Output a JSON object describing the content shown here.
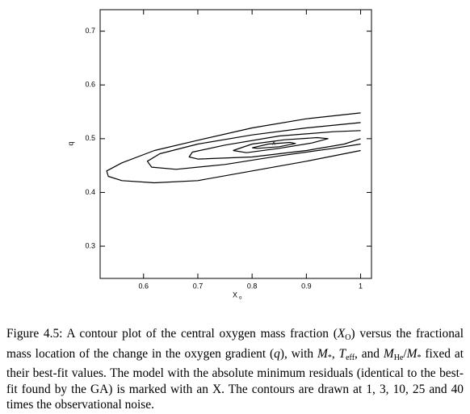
{
  "chart_data": {
    "type": "contour",
    "xlabel": "X",
    "xlabel_sub": "o",
    "ylabel": "q",
    "xlim": [
      0.52,
      1.02
    ],
    "ylim": [
      0.24,
      0.74
    ],
    "xticks": [
      0.6,
      0.7,
      0.8,
      0.9,
      1
    ],
    "yticks": [
      0.3,
      0.4,
      0.5,
      0.6,
      0.7
    ],
    "color": "#000000",
    "contours": [
      {
        "x": [
          1.0,
          0.9,
          0.8,
          0.7,
          0.62,
          0.56,
          0.532,
          0.535,
          0.56,
          0.62,
          0.7,
          0.8,
          0.9,
          1.0
        ],
        "y": [
          0.548,
          0.537,
          0.52,
          0.497,
          0.478,
          0.455,
          0.44,
          0.43,
          0.422,
          0.418,
          0.422,
          0.44,
          0.458,
          0.478
        ]
      },
      {
        "x": [
          1.0,
          0.9,
          0.8,
          0.7,
          0.63,
          0.607,
          0.615,
          0.66,
          0.75,
          0.85,
          0.95,
          1.0
        ],
        "y": [
          0.53,
          0.52,
          0.507,
          0.49,
          0.472,
          0.458,
          0.447,
          0.443,
          0.452,
          0.468,
          0.482,
          0.49
        ]
      },
      {
        "x": [
          1.0,
          0.95,
          0.85,
          0.75,
          0.69,
          0.684,
          0.7,
          0.8,
          0.9,
          0.97,
          1.0
        ],
        "y": [
          0.515,
          0.513,
          0.505,
          0.488,
          0.475,
          0.466,
          0.462,
          0.466,
          0.478,
          0.49,
          0.5
        ]
      },
      {
        "x": [
          0.765,
          0.8,
          0.86,
          0.92,
          0.94,
          0.91,
          0.85,
          0.79,
          0.765
        ],
        "y": [
          0.478,
          0.49,
          0.498,
          0.502,
          0.5,
          0.492,
          0.482,
          0.474,
          0.478
        ]
      },
      {
        "x": [
          0.8,
          0.83,
          0.87,
          0.88,
          0.85,
          0.81,
          0.8
        ],
        "y": [
          0.483,
          0.49,
          0.493,
          0.491,
          0.485,
          0.482,
          0.483
        ]
      }
    ],
    "marker": {
      "label": "x",
      "x": 0.84,
      "y": 0.49
    }
  },
  "caption": [
    {
      "text": "Figure 4.5: A contour plot of the central oxygen mass fraction (",
      "style": "normal"
    },
    {
      "text": "X",
      "style": "italic"
    },
    {
      "text": "O",
      "style": "sub"
    },
    {
      "text": ") versus the fractional mass location of the change in the oxygen gradient (",
      "style": "normal"
    },
    {
      "text": "q",
      "style": "italic"
    },
    {
      "text": "), with ",
      "style": "normal"
    },
    {
      "text": "M",
      "style": "italic"
    },
    {
      "text": "*",
      "style": "sub"
    },
    {
      "text": ", ",
      "style": "normal"
    },
    {
      "text": "T",
      "style": "italic"
    },
    {
      "text": "eff",
      "style": "sub"
    },
    {
      "text": ", and ",
      "style": "normal"
    },
    {
      "text": "M",
      "style": "italic"
    },
    {
      "text": "He",
      "style": "sub"
    },
    {
      "text": "/",
      "style": "normal"
    },
    {
      "text": "M",
      "style": "italic"
    },
    {
      "text": "*",
      "style": "sub"
    },
    {
      "text": " fixed at their best-fit values. The model with the absolute minimum residuals (identical to the best-fit found by the GA) is marked with an X. The contours are drawn at 1, 3, 10, 25 and 40 times the observational noise.",
      "style": "normal"
    }
  ]
}
